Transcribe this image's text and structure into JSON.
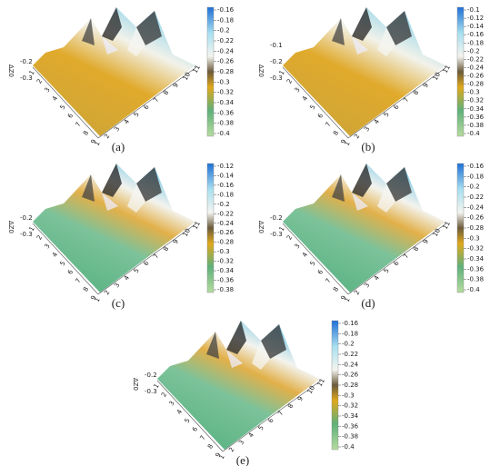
{
  "x_ticks": [
    1,
    2,
    3,
    4,
    5,
    6,
    7,
    8,
    9,
    10,
    11
  ],
  "y_ticks": [
    1,
    2,
    3,
    4,
    5,
    6,
    7,
    8,
    9
  ],
  "z_label": "ΔZ0",
  "panels": [
    {
      "label": "(a)",
      "zticks": [
        -0.2,
        -0.3
      ],
      "colorbar_ticks": [
        -0.16,
        -0.18,
        -0.2,
        -0.22,
        -0.24,
        -0.26,
        -0.28,
        -0.3,
        -0.32,
        -0.34,
        -0.36,
        -0.38,
        -0.4
      ]
    },
    {
      "label": "(b)",
      "zticks": [
        -0.1,
        -0.2,
        -0.3
      ],
      "colorbar_ticks": [
        -0.1,
        -0.12,
        -0.14,
        -0.16,
        -0.18,
        -0.2,
        -0.22,
        -0.24,
        -0.26,
        -0.28,
        -0.3,
        -0.32,
        -0.34,
        -0.36,
        -0.38,
        -0.4
      ]
    },
    {
      "label": "(c)",
      "zticks": [
        -0.2,
        -0.3
      ],
      "colorbar_ticks": [
        -0.12,
        -0.14,
        -0.16,
        -0.18,
        -0.2,
        -0.22,
        -0.24,
        -0.26,
        -0.28,
        -0.3,
        -0.32,
        -0.34,
        -0.36,
        -0.38
      ]
    },
    {
      "label": "(d)",
      "zticks": [
        -0.2,
        -0.3
      ],
      "colorbar_ticks": [
        -0.16,
        -0.18,
        -0.2,
        -0.22,
        -0.24,
        -0.26,
        -0.28,
        -0.3,
        -0.32,
        -0.34,
        -0.36,
        -0.38,
        -0.4
      ]
    },
    {
      "label": "(e)",
      "zticks": [
        -0.2,
        -0.3
      ],
      "colorbar_ticks": [
        -0.16,
        -0.18,
        -0.2,
        -0.22,
        -0.24,
        -0.26,
        -0.28,
        -0.3,
        -0.32,
        -0.34,
        -0.36,
        -0.38,
        -0.4
      ]
    }
  ]
}
